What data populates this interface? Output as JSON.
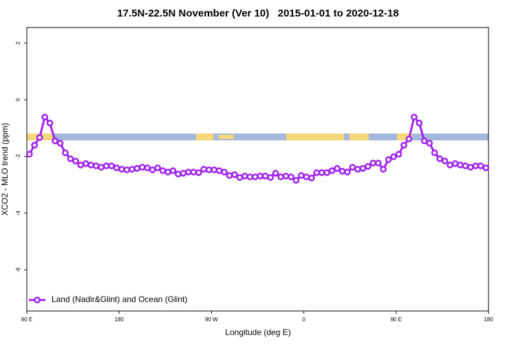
{
  "chart_data": {
    "type": "line",
    "title": "17.5N-22.5N November (Ver 10)   2015-01-01 to 2020-12-18",
    "x_label": "Longitude (deg E)",
    "y_label": "XCO2 - MLO trend (ppm)",
    "xlim": [
      90,
      540
    ],
    "xticks": [
      {
        "value": 90,
        "label": "90 E"
      },
      180,
      {
        "value": 270,
        "label": "90 W"
      },
      {
        "value": 360,
        "label": "0"
      },
      {
        "value": 450,
        "label": "90 E"
      },
      {
        "value": 540,
        "label": "180"
      }
    ],
    "ylim": [
      -7.45,
      2.55
    ],
    "yticks": [
      -6,
      -4,
      -2,
      0,
      2
    ],
    "legend": "bottomleft",
    "x": [
      92.5,
      97.5,
      102.5,
      107.5,
      112.5,
      117.5,
      122.5,
      127.5,
      132.5,
      137.5,
      142.5,
      147.5,
      152.5,
      157.5,
      162.5,
      167.5,
      172.5,
      177.5,
      182.5,
      187.5,
      192.5,
      197.5,
      202.5,
      207.5,
      212.5,
      217.5,
      222.5,
      227.5,
      232.5,
      237.5,
      242.5,
      247.5,
      252.5,
      257.5,
      262.5,
      267.5,
      272.5,
      277.5,
      282.5,
      287.5,
      292.5,
      297.5,
      302.5,
      307.5,
      312.5,
      317.5,
      322.5,
      327.5,
      332.5,
      337.5,
      342.5,
      347.5,
      352.5,
      357.5,
      362.5,
      367.5,
      372.5,
      377.5,
      382.5,
      387.5,
      392.5,
      397.5,
      402.5,
      407.5,
      412.5,
      417.5,
      422.5,
      427.5,
      432.5,
      437.5,
      442.5,
      447.5,
      452.5,
      457.5,
      462.5,
      467.5,
      472.5,
      477.5,
      482.5,
      487.5,
      492.5,
      497.5,
      502.5,
      507.5,
      512.5,
      517.5,
      522.5,
      527.5,
      532.5,
      537.5
    ],
    "series": [
      {
        "name": "Land (Nadir&Glint) and Ocean (Glint)",
        "color": "#a020f0",
        "values": [
          -1.92,
          -1.6,
          -1.33,
          -0.61,
          -0.82,
          -1.45,
          -1.53,
          -1.87,
          -2.08,
          -2.16,
          -2.3,
          -2.25,
          -2.3,
          -2.33,
          -2.38,
          -2.33,
          -2.33,
          -2.4,
          -2.45,
          -2.47,
          -2.45,
          -2.42,
          -2.38,
          -2.4,
          -2.47,
          -2.4,
          -2.5,
          -2.55,
          -2.5,
          -2.62,
          -2.59,
          -2.55,
          -2.55,
          -2.57,
          -2.45,
          -2.47,
          -2.47,
          -2.5,
          -2.55,
          -2.67,
          -2.64,
          -2.74,
          -2.69,
          -2.72,
          -2.72,
          -2.69,
          -2.69,
          -2.74,
          -2.59,
          -2.72,
          -2.69,
          -2.72,
          -2.84,
          -2.67,
          -2.72,
          -2.76,
          -2.57,
          -2.57,
          -2.57,
          -2.5,
          -2.42,
          -2.52,
          -2.55,
          -2.38,
          -2.45,
          -2.42,
          -2.35,
          -2.23,
          -2.23,
          -2.45,
          -2.11,
          -2.01,
          -1.92,
          -1.6,
          -1.38,
          -0.61,
          -0.82,
          -1.45,
          -1.53,
          -1.87,
          -2.08,
          -2.16,
          -2.3,
          -2.25,
          -2.3,
          -2.33,
          -2.38,
          -2.33,
          -2.33,
          -2.4
        ]
      }
    ]
  }
}
